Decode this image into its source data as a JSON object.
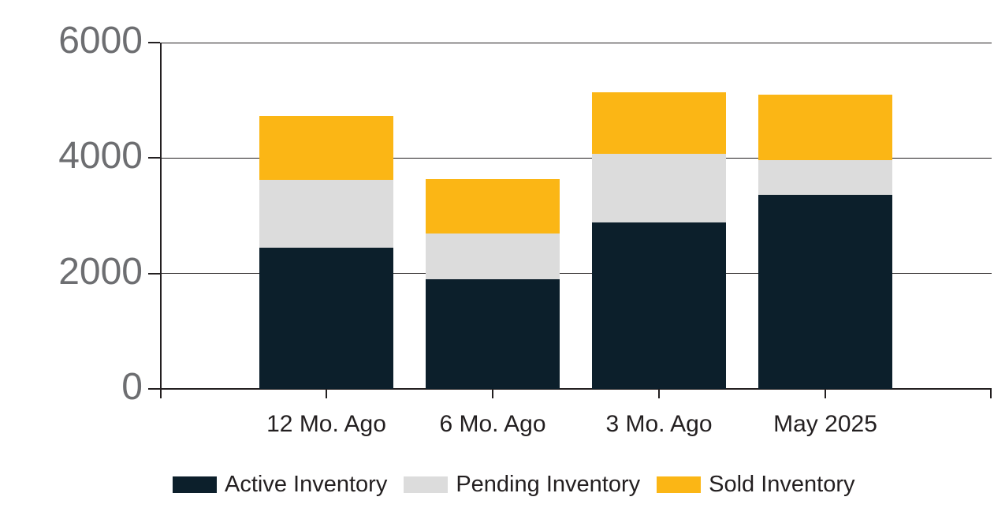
{
  "chart_data": {
    "type": "bar",
    "stacked": true,
    "title": "",
    "categories": [
      "12 Mo. Ago",
      "6 Mo. Ago",
      "3 Mo. Ago",
      "May 2025"
    ],
    "series": [
      {
        "name": "Active Inventory",
        "color": "#0c1f2b",
        "values": [
          2450,
          1900,
          2880,
          3360
        ]
      },
      {
        "name": "Pending Inventory",
        "color": "#dcdcdc",
        "values": [
          1170,
          790,
          1190,
          600
        ]
      },
      {
        "name": "Sold Inventory",
        "color": "#fbb615",
        "values": [
          1110,
          950,
          1070,
          1140
        ]
      }
    ],
    "totals": [
      4730,
      3640,
      5140,
      5100
    ],
    "ylim": [
      0,
      6000
    ],
    "yticks": [
      0,
      2000,
      4000,
      6000
    ],
    "ytick_labels": [
      "0",
      "2000",
      "4000",
      "6000"
    ],
    "grid": "horizontal",
    "legend_position": "bottom",
    "colors": {
      "axis": "#231f20",
      "ytick_label": "#6d6e71",
      "xtick_label": "#231f20",
      "background": "#ffffff"
    }
  }
}
